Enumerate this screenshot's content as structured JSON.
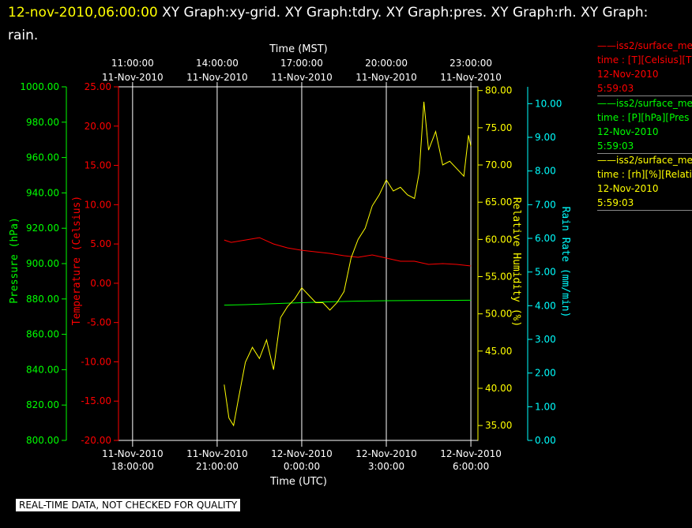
{
  "header": {
    "timestamp": "12-nov-2010,06:00:00",
    "titles": " XY Graph:xy-grid.  XY Graph:tdry.  XY Graph:pres.  XY Graph:rh.  XY Graph: rain."
  },
  "footer": {
    "notice": "REAL-TIME DATA, NOT CHECKED FOR QUALITY"
  },
  "colors": {
    "background": "#000000",
    "frame": "#ffffff",
    "temperature": "#ff0000",
    "pressure": "#00ff00",
    "humidity": "#ffff00",
    "rain": "#00ffff"
  },
  "legend": [
    {
      "title": "——iss2/surface_me",
      "line2": "time : [T][Celsius][T",
      "date": "12-Nov-2010",
      "time": "5:59:03",
      "color": "#ff0000"
    },
    {
      "title": "——iss2/surface_me",
      "line2": "time : [P][hPa][Pres",
      "date": "12-Nov-2010",
      "time": "5:59:03",
      "color": "#00ff00"
    },
    {
      "title": "——iss2/surface_me",
      "line2": "time : [rh][%][Relati",
      "date": "12-Nov-2010",
      "time": "5:59:03",
      "color": "#ffff00"
    }
  ],
  "chart_data": {
    "type": "line",
    "grid": true,
    "x_top_label": "Time (MST)",
    "x_bottom_label": "Time (UTC)",
    "x_range_utc": [
      "2010-11-11 17:30",
      "2010-11-12 06:15"
    ],
    "x_top_ticks": [
      {
        "time": "11:00:00",
        "date": "11-Nov-2010",
        "utc": "2010-11-11 18:00"
      },
      {
        "time": "14:00:00",
        "date": "11-Nov-2010",
        "utc": "2010-11-11 21:00"
      },
      {
        "time": "17:00:00",
        "date": "11-Nov-2010",
        "utc": "2010-11-12 00:00"
      },
      {
        "time": "20:00:00",
        "date": "11-Nov-2010",
        "utc": "2010-11-12 03:00"
      },
      {
        "time": "23:00:00",
        "date": "11-Nov-2010",
        "utc": "2010-11-12 06:00"
      }
    ],
    "x_bottom_ticks": [
      {
        "date": "11-Nov-2010",
        "time": "18:00:00",
        "utc": "2010-11-11 18:00"
      },
      {
        "date": "11-Nov-2010",
        "time": "21:00:00",
        "utc": "2010-11-11 21:00"
      },
      {
        "date": "12-Nov-2010",
        "time": "0:00:00",
        "utc": "2010-11-12 00:00"
      },
      {
        "date": "12-Nov-2010",
        "time": "3:00:00",
        "utc": "2010-11-12 03:00"
      },
      {
        "date": "12-Nov-2010",
        "time": "6:00:00",
        "utc": "2010-11-12 06:00"
      }
    ],
    "axes": {
      "pressure": {
        "label": "Pressure (hPa)",
        "ylim": [
          800,
          1000
        ],
        "ticks": [
          "1000.00",
          "980.00",
          "960.00",
          "940.00",
          "920.00",
          "900.00",
          "880.00",
          "860.00",
          "840.00",
          "820.00",
          "800.00"
        ]
      },
      "temperature": {
        "label": "Temperature (Celsius)",
        "ylim": [
          -20,
          25
        ],
        "ticks": [
          "25.00",
          "20.00",
          "15.00",
          "10.00",
          "5.00",
          "0.00",
          "-5.00",
          "-10.00",
          "-15.00",
          "-20.00"
        ]
      },
      "humidity": {
        "label": "Relative Humidity (%)",
        "ylim": [
          33,
          80.5
        ],
        "ticks": [
          "80.00",
          "75.00",
          "70.00",
          "65.00",
          "60.00",
          "55.00",
          "50.00",
          "45.00",
          "40.00",
          "35.00"
        ]
      },
      "rain": {
        "label": "Rain Rate (mm/min)",
        "ylim": [
          0,
          10.5
        ],
        "ticks": [
          "10.00",
          "9.00",
          "8.00",
          "7.00",
          "6.00",
          "5.00",
          "4.00",
          "3.00",
          "2.00",
          "1.00",
          "0.00"
        ]
      }
    },
    "series": [
      {
        "key": "temperature",
        "color": "#ff0000",
        "x": [
          "2010-11-11 21:15",
          "2010-11-11 21:30",
          "2010-11-11 22:00",
          "2010-11-11 22:30",
          "2010-11-11 23:00",
          "2010-11-11 23:30",
          "2010-11-12 00:00",
          "2010-11-12 00:30",
          "2010-11-12 01:00",
          "2010-11-12 01:30",
          "2010-11-12 02:00",
          "2010-11-12 02:30",
          "2010-11-12 03:00",
          "2010-11-12 03:30",
          "2010-11-12 04:00",
          "2010-11-12 04:30",
          "2010-11-12 05:00",
          "2010-11-12 05:30",
          "2010-11-12 06:00"
        ],
        "y": [
          5.5,
          5.2,
          5.5,
          5.8,
          5.0,
          4.5,
          4.2,
          4.0,
          3.8,
          3.5,
          3.3,
          3.6,
          3.2,
          2.8,
          2.8,
          2.4,
          2.5,
          2.4,
          2.2
        ]
      },
      {
        "key": "pressure",
        "color": "#00ff00",
        "x": [
          "2010-11-11 21:15",
          "2010-11-11 22:00",
          "2010-11-11 23:00",
          "2010-11-12 00:00",
          "2010-11-12 01:00",
          "2010-11-12 02:00",
          "2010-11-12 03:00",
          "2010-11-12 04:00",
          "2010-11-12 05:00",
          "2010-11-12 06:00"
        ],
        "y": [
          876.5,
          876.8,
          877.3,
          877.9,
          878.4,
          878.8,
          879.0,
          879.1,
          879.2,
          879.3
        ]
      },
      {
        "key": "humidity",
        "color": "#ffff00",
        "x": [
          "2010-11-11 21:15",
          "2010-11-11 21:25",
          "2010-11-11 21:35",
          "2010-11-11 21:45",
          "2010-11-11 22:00",
          "2010-11-11 22:15",
          "2010-11-11 22:30",
          "2010-11-11 22:45",
          "2010-11-11 23:00",
          "2010-11-11 23:15",
          "2010-11-11 23:30",
          "2010-11-11 23:45",
          "2010-11-12 00:00",
          "2010-11-12 00:15",
          "2010-11-12 00:30",
          "2010-11-12 00:45",
          "2010-11-12 01:00",
          "2010-11-12 01:15",
          "2010-11-12 01:30",
          "2010-11-12 01:45",
          "2010-11-12 02:00",
          "2010-11-12 02:15",
          "2010-11-12 02:30",
          "2010-11-12 02:45",
          "2010-11-12 03:00",
          "2010-11-12 03:15",
          "2010-11-12 03:30",
          "2010-11-12 03:45",
          "2010-11-12 04:00",
          "2010-11-12 04:10",
          "2010-11-12 04:20",
          "2010-11-12 04:30",
          "2010-11-12 04:45",
          "2010-11-12 05:00",
          "2010-11-12 05:15",
          "2010-11-12 05:30",
          "2010-11-12 05:45",
          "2010-11-12 05:55",
          "2010-11-12 06:00"
        ],
        "y": [
          40.5,
          36.0,
          35.0,
          38.5,
          43.5,
          45.5,
          44.0,
          46.5,
          42.5,
          49.5,
          51.0,
          52.0,
          53.5,
          52.5,
          51.5,
          51.5,
          50.5,
          51.5,
          53.0,
          57.5,
          60.0,
          61.5,
          64.5,
          66.0,
          68.0,
          66.5,
          67.0,
          66.0,
          65.5,
          69.0,
          78.5,
          72.0,
          74.5,
          70.0,
          70.5,
          69.5,
          68.5,
          74.0,
          72.5
        ]
      },
      {
        "key": "rain",
        "color": "#00ffff",
        "x": [],
        "y": []
      }
    ]
  }
}
